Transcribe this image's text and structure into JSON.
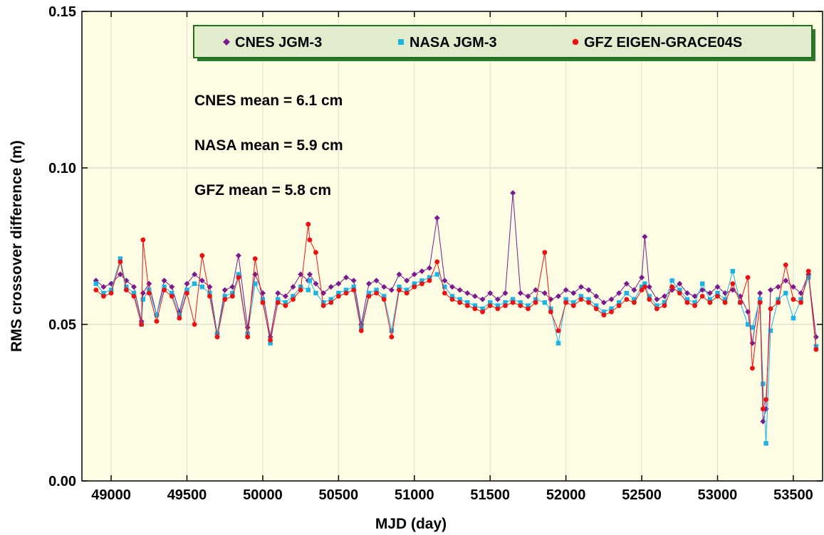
{
  "chart_data": {
    "type": "line",
    "xlabel": "MJD (day)",
    "ylabel": "RMS crossover difference (m)",
    "xlim": [
      48807,
      53693
    ],
    "ylim": [
      0,
      0.15
    ],
    "xticks": [
      49000,
      49500,
      50000,
      50500,
      51000,
      51500,
      52000,
      52500,
      53000,
      53500
    ],
    "yticks": [
      {
        "value": 0,
        "label": "0.00"
      },
      {
        "value": 0.05,
        "label": "0.05"
      },
      {
        "value": 0.1,
        "label": "0.10"
      },
      {
        "value": 0.15,
        "label": "0.15"
      }
    ],
    "grid": true,
    "legend_position": "top",
    "annotations": [
      "CNES mean = 6.1 cm",
      "NASA mean = 5.9 cm",
      "GFZ mean = 5.8 cm"
    ],
    "x": [
      48900,
      48950,
      49000,
      49060,
      49100,
      49150,
      49200,
      49210,
      49250,
      49300,
      49350,
      49400,
      49450,
      49500,
      49550,
      49600,
      49650,
      49700,
      49750,
      49800,
      49840,
      49900,
      49950,
      50000,
      50050,
      50100,
      50150,
      50200,
      50250,
      50300,
      50310,
      50350,
      50400,
      50450,
      50500,
      50550,
      50600,
      50650,
      50700,
      50750,
      50800,
      50850,
      50900,
      50950,
      51000,
      51050,
      51100,
      51150,
      51200,
      51250,
      51300,
      51350,
      51400,
      51450,
      51500,
      51550,
      51600,
      51650,
      51700,
      51750,
      51800,
      51860,
      51900,
      51950,
      52000,
      52050,
      52100,
      52150,
      52200,
      52250,
      52300,
      52350,
      52400,
      52450,
      52500,
      52520,
      52550,
      52600,
      52650,
      52700,
      52750,
      52800,
      52850,
      52900,
      52950,
      53000,
      53050,
      53100,
      53150,
      53200,
      53230,
      53280,
      53300,
      53320,
      53350,
      53400,
      53450,
      53500,
      53550,
      53600,
      53650
    ],
    "series": [
      {
        "name": "CNES JGM-3",
        "color": "#7a1a8e",
        "marker": "diamond",
        "values": [
          0.064,
          0.062,
          0.063,
          0.066,
          0.064,
          0.062,
          0.051,
          0.06,
          0.063,
          0.053,
          0.064,
          0.062,
          0.054,
          0.063,
          0.066,
          0.064,
          0.062,
          0.047,
          0.061,
          0.062,
          0.072,
          0.049,
          0.066,
          0.06,
          0.046,
          0.06,
          0.059,
          0.062,
          0.066,
          0.064,
          0.066,
          0.063,
          0.06,
          0.062,
          0.063,
          0.065,
          0.064,
          0.05,
          0.063,
          0.064,
          0.062,
          0.061,
          0.066,
          0.064,
          0.066,
          0.067,
          0.068,
          0.084,
          0.064,
          0.062,
          0.061,
          0.06,
          0.059,
          0.058,
          0.06,
          0.058,
          0.06,
          0.092,
          0.06,
          0.059,
          0.061,
          0.06,
          0.058,
          0.059,
          0.061,
          0.06,
          0.062,
          0.061,
          0.059,
          0.057,
          0.058,
          0.06,
          0.063,
          0.061,
          0.065,
          0.078,
          0.062,
          0.058,
          0.059,
          0.061,
          0.063,
          0.06,
          0.059,
          0.061,
          0.06,
          0.062,
          0.06,
          0.061,
          0.059,
          0.054,
          0.044,
          0.06,
          0.019,
          0.023,
          0.061,
          0.062,
          0.064,
          0.062,
          0.06,
          0.066,
          0.046
        ]
      },
      {
        "name": "NASA JGM-3",
        "color": "#1ab4e6",
        "marker": "square",
        "values": [
          0.063,
          0.06,
          0.061,
          0.071,
          0.062,
          0.06,
          0.05,
          0.058,
          0.061,
          0.053,
          0.062,
          0.06,
          0.053,
          0.061,
          0.063,
          0.062,
          0.06,
          0.047,
          0.059,
          0.06,
          0.066,
          0.047,
          0.063,
          0.058,
          0.044,
          0.058,
          0.057,
          0.059,
          0.062,
          0.061,
          0.064,
          0.06,
          0.057,
          0.058,
          0.06,
          0.061,
          0.062,
          0.049,
          0.06,
          0.061,
          0.059,
          0.048,
          0.062,
          0.061,
          0.063,
          0.064,
          0.065,
          0.066,
          0.062,
          0.059,
          0.058,
          0.057,
          0.056,
          0.055,
          0.057,
          0.056,
          0.057,
          0.058,
          0.057,
          0.056,
          0.058,
          0.057,
          0.055,
          0.044,
          0.058,
          0.057,
          0.059,
          0.058,
          0.056,
          0.054,
          0.055,
          0.057,
          0.06,
          0.058,
          0.062,
          0.063,
          0.059,
          0.056,
          0.057,
          0.064,
          0.061,
          0.058,
          0.057,
          0.063,
          0.058,
          0.06,
          0.058,
          0.067,
          0.057,
          0.05,
          0.049,
          0.058,
          0.031,
          0.012,
          0.048,
          0.058,
          0.06,
          0.052,
          0.058,
          0.065,
          0.043
        ]
      },
      {
        "name": "GFZ EIGEN-GRACE04S",
        "color": "#ee1111",
        "marker": "circle",
        "values": [
          0.061,
          0.059,
          0.06,
          0.07,
          0.061,
          0.059,
          0.05,
          0.077,
          0.06,
          0.051,
          0.061,
          0.059,
          0.052,
          0.06,
          0.05,
          0.072,
          0.059,
          0.046,
          0.058,
          0.059,
          0.065,
          0.046,
          0.071,
          0.057,
          0.045,
          0.057,
          0.056,
          0.058,
          0.061,
          0.082,
          0.077,
          0.073,
          0.056,
          0.057,
          0.059,
          0.06,
          0.061,
          0.048,
          0.059,
          0.06,
          0.058,
          0.046,
          0.061,
          0.06,
          0.062,
          0.063,
          0.064,
          0.07,
          0.06,
          0.058,
          0.057,
          0.056,
          0.055,
          0.054,
          0.056,
          0.055,
          0.056,
          0.057,
          0.056,
          0.055,
          0.057,
          0.073,
          0.054,
          0.048,
          0.057,
          0.056,
          0.058,
          0.057,
          0.055,
          0.053,
          0.054,
          0.056,
          0.058,
          0.057,
          0.061,
          0.062,
          0.058,
          0.055,
          0.056,
          0.062,
          0.06,
          0.057,
          0.056,
          0.059,
          0.057,
          0.059,
          0.057,
          0.063,
          0.057,
          0.065,
          0.036,
          0.057,
          0.023,
          0.026,
          0.055,
          0.057,
          0.069,
          0.058,
          0.057,
          0.067,
          0.042
        ]
      }
    ]
  }
}
